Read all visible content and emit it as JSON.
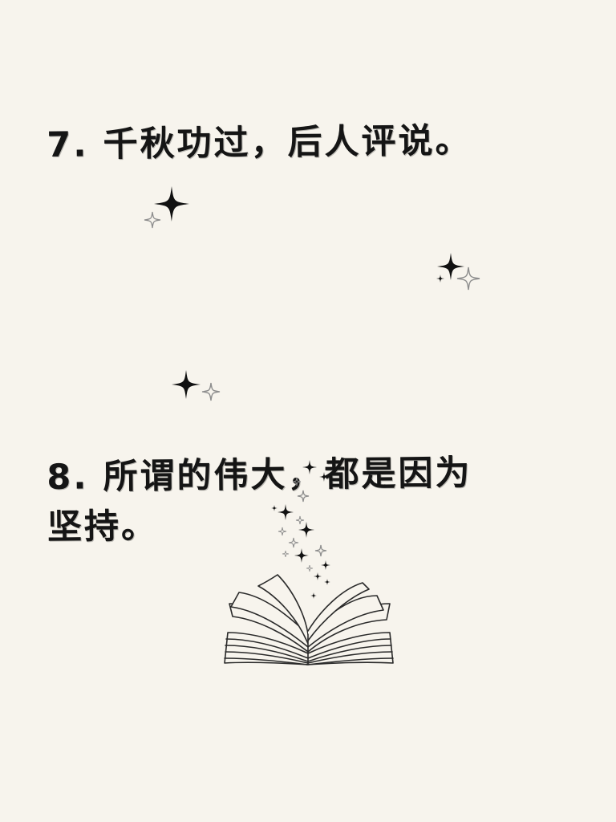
{
  "quotes": [
    {
      "text": "7. 千秋功过，后人评说。"
    },
    {
      "text": "8. 所谓的伟大，都是因为\n坚持。"
    }
  ],
  "colors": {
    "background": "#f7f4ed",
    "text": "#151515",
    "sparkle_dark": "#111111",
    "sparkle_light": "#9a9a9a"
  },
  "icons": [
    "sparkle-icon",
    "open-book-icon"
  ]
}
